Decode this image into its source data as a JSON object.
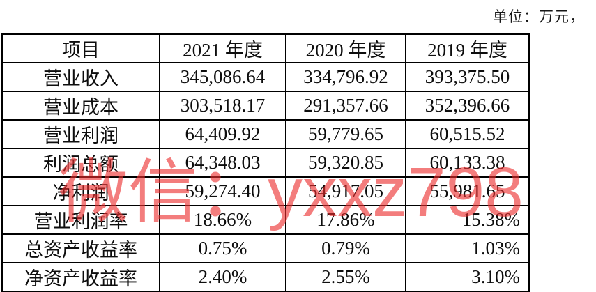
{
  "unit_label": "单位：万元，",
  "watermark_text": "微信：yxxz798",
  "colors": {
    "watermark_red": "#EB2D2D",
    "table_border": "#000000",
    "text": "#0D0D0D"
  },
  "table": {
    "headers": [
      "项目",
      "2021 年度",
      "2020 年度",
      "2019 年度"
    ],
    "rows": [
      {
        "label": "营业收入",
        "values": [
          "345,086.64",
          "334,796.92",
          "393,375.50"
        ]
      },
      {
        "label": "营业成本",
        "values": [
          "303,518.17",
          "291,357.66",
          "352,396.66"
        ]
      },
      {
        "label": "营业利润",
        "values": [
          "64,409.92",
          "59,779.65",
          "60,515.52"
        ]
      },
      {
        "label": "利润总额",
        "values": [
          "64,348.03",
          "59,320.85",
          "60,133.38"
        ]
      },
      {
        "label": "净利润",
        "values": [
          "59,274.40",
          "54,917.05",
          "55,981.65"
        ]
      },
      {
        "label": "营业利润率",
        "values": [
          "18.66%",
          "17.86%",
          "15.38%"
        ]
      },
      {
        "label": "总资产收益率",
        "values": [
          "0.75%",
          "0.79%",
          "1.03%"
        ]
      },
      {
        "label": "净资产收益率",
        "values": [
          "2.40%",
          "2.55%",
          "3.10%"
        ]
      }
    ]
  }
}
